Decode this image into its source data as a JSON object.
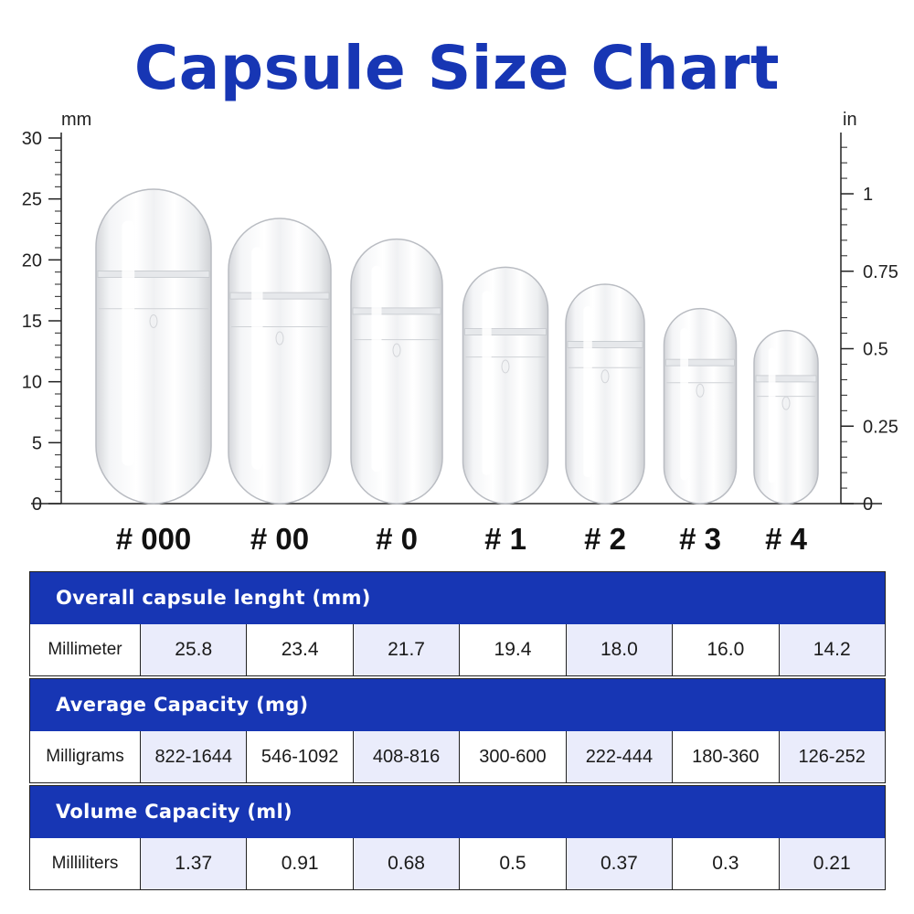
{
  "title": "Capsule Size Chart",
  "colors": {
    "brand": "#1736b4",
    "shade": "#eaecfb"
  },
  "chart_data": {
    "type": "bar",
    "title": "Capsule Size Chart",
    "categories": [
      "# 000",
      "# 00",
      "# 0",
      "# 1",
      "# 2",
      "# 3",
      "# 4"
    ],
    "values": [
      25.8,
      23.4,
      21.7,
      19.4,
      18.0,
      16.0,
      14.2
    ],
    "left_axis": {
      "unit": "mm",
      "min": 0,
      "max": 30,
      "ticks": [
        "0",
        "5",
        "10",
        "15",
        "20",
        "25",
        "30"
      ]
    },
    "right_axis": {
      "unit": "in",
      "min": 0,
      "max": 1.18,
      "ticks": [
        "0",
        "0.25",
        "0.5",
        "0.75",
        "1"
      ]
    },
    "mark_style": "clear capsule"
  },
  "tables": [
    {
      "header": "Overall capsule lenght (mm)",
      "row_label": "Millimeter",
      "values": [
        "25.8",
        "23.4",
        "21.7",
        "19.4",
        "18.0",
        "16.0",
        "14.2"
      ]
    },
    {
      "header": "Average Capacity (mg)",
      "row_label": "Milligrams",
      "values": [
        "822-1644",
        "546-1092",
        "408-816",
        "300-600",
        "222-444",
        "180-360",
        "126-252"
      ]
    },
    {
      "header": "Volume Capacity (ml)",
      "row_label": "Milliliters",
      "values": [
        "1.37",
        "0.91",
        "0.68",
        "0.5",
        "0.37",
        "0.3",
        "0.21"
      ]
    }
  ]
}
